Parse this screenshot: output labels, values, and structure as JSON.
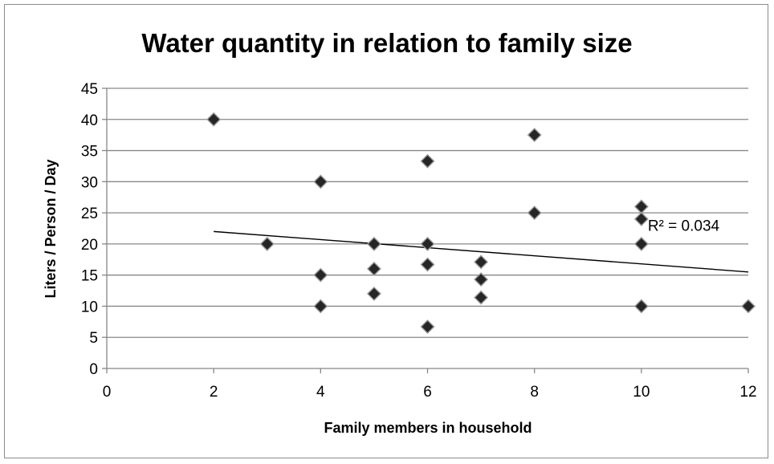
{
  "chart_data": {
    "type": "scatter",
    "title": "Water quantity in relation to family size",
    "xlabel": "Family members in household",
    "ylabel": "Liters / Person / Day",
    "xlim": [
      0,
      12
    ],
    "ylim": [
      0,
      45
    ],
    "x_ticks": [
      "0",
      "2",
      "4",
      "6",
      "8",
      "10",
      "12"
    ],
    "y_ticks": [
      "0",
      "5",
      "10",
      "15",
      "20",
      "25",
      "30",
      "35",
      "40",
      "45"
    ],
    "grid": "horizontal",
    "legend": "none",
    "marker": "diamond",
    "marker_color": "#262626",
    "points": [
      {
        "x": 2,
        "y": 40
      },
      {
        "x": 3,
        "y": 20
      },
      {
        "x": 4,
        "y": 30
      },
      {
        "x": 4,
        "y": 15
      },
      {
        "x": 4,
        "y": 10
      },
      {
        "x": 5,
        "y": 20
      },
      {
        "x": 5,
        "y": 16
      },
      {
        "x": 5,
        "y": 12
      },
      {
        "x": 6,
        "y": 33.3
      },
      {
        "x": 6,
        "y": 20
      },
      {
        "x": 6,
        "y": 16.7
      },
      {
        "x": 6,
        "y": 6.7
      },
      {
        "x": 7,
        "y": 17.1
      },
      {
        "x": 7,
        "y": 14.3
      },
      {
        "x": 7,
        "y": 11.4
      },
      {
        "x": 8,
        "y": 37.5
      },
      {
        "x": 8,
        "y": 25
      },
      {
        "x": 10,
        "y": 26
      },
      {
        "x": 10,
        "y": 24
      },
      {
        "x": 10,
        "y": 20
      },
      {
        "x": 10,
        "y": 10
      },
      {
        "x": 12,
        "y": 10
      }
    ],
    "trendline": {
      "type": "linear",
      "start": {
        "x": 2,
        "y": 22
      },
      "end": {
        "x": 12,
        "y": 15.5
      },
      "r_squared_label": "R² = 0.034"
    }
  }
}
